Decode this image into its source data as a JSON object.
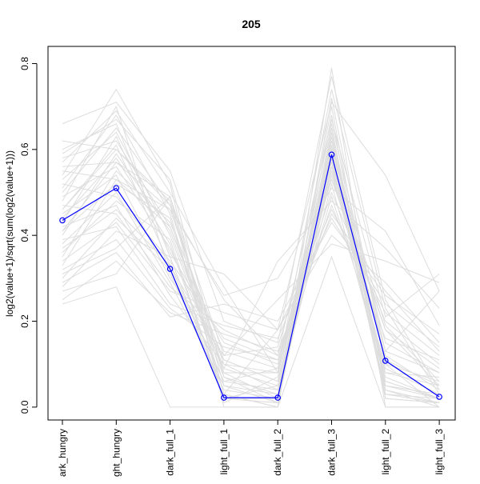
{
  "chart_data": {
    "type": "line",
    "title": "205",
    "xlabel": "",
    "ylabel": "log2(value+1)/sqrt(sum(log2(value+1)))",
    "categories": [
      "dark_hungry",
      "light_hungry",
      "dark_full_1",
      "light_full_1",
      "dark_full_2",
      "dark_full_3",
      "light_full_2",
      "light_full_3"
    ],
    "tick_labels_visible": [
      "ark_hungry",
      "ght_hungry",
      "dark_full_1",
      "light_full_1",
      "dark_full_2",
      "dark_full_3",
      "light_full_2",
      "light_full_3"
    ],
    "y_ticks": [
      0.0,
      0.2,
      0.4,
      0.6,
      0.8
    ],
    "y_tick_labels": [
      "0.0",
      "0.2",
      "0.4",
      "0.6",
      "0.8"
    ],
    "ylim": [
      -0.03,
      0.84
    ],
    "grid": false,
    "legend": "none",
    "highlight_series": {
      "color": "#0000ff",
      "values": [
        0.435,
        0.51,
        0.322,
        0.022,
        0.022,
        0.588,
        0.108,
        0.024
      ]
    },
    "background_color": "#dddddd",
    "background_series": [
      {
        "values": [
          0.62,
          0.6,
          0.47,
          0.08,
          0.02,
          0.65,
          0.05,
          0.02
        ]
      },
      {
        "values": [
          0.6,
          0.66,
          0.35,
          0.02,
          0.05,
          0.6,
          0.02,
          0.01
        ]
      },
      {
        "values": [
          0.58,
          0.62,
          0.42,
          0.11,
          0.06,
          0.62,
          0.11,
          0.05
        ]
      },
      {
        "values": [
          0.56,
          0.57,
          0.49,
          0.05,
          0.01,
          0.58,
          0.04,
          0.0
        ]
      },
      {
        "values": [
          0.55,
          0.53,
          0.46,
          0.1,
          0.08,
          0.55,
          0.18,
          0.09
        ]
      },
      {
        "values": [
          0.53,
          0.64,
          0.4,
          0.07,
          0.03,
          0.61,
          0.06,
          0.02
        ]
      },
      {
        "values": [
          0.52,
          0.49,
          0.34,
          0.16,
          0.11,
          0.53,
          0.18,
          0.05
        ]
      },
      {
        "values": [
          0.51,
          0.68,
          0.45,
          0.03,
          0.0,
          0.68,
          0.02,
          0.01
        ]
      },
      {
        "values": [
          0.49,
          0.56,
          0.37,
          0.09,
          0.05,
          0.56,
          0.09,
          0.03
        ]
      },
      {
        "values": [
          0.48,
          0.7,
          0.31,
          0.04,
          0.02,
          0.7,
          0.04,
          0.01
        ]
      },
      {
        "values": [
          0.47,
          0.45,
          0.28,
          0.18,
          0.12,
          0.5,
          0.2,
          0.1
        ]
      },
      {
        "values": [
          0.46,
          0.61,
          0.33,
          0.06,
          0.09,
          0.59,
          0.07,
          0.02
        ]
      },
      {
        "values": [
          0.45,
          0.54,
          0.3,
          0.12,
          0.14,
          0.57,
          0.13,
          0.08
        ]
      },
      {
        "values": [
          0.44,
          0.58,
          0.38,
          0.02,
          0.02,
          0.63,
          0.03,
          0.02
        ]
      },
      {
        "values": [
          0.43,
          0.63,
          0.36,
          0.15,
          0.1,
          0.6,
          0.19,
          0.06
        ]
      },
      {
        "values": [
          0.42,
          0.47,
          0.26,
          0.1,
          0.04,
          0.54,
          0.12,
          0.04
        ]
      },
      {
        "values": [
          0.41,
          0.52,
          0.44,
          0.03,
          0.0,
          0.64,
          0.05,
          0.03
        ]
      },
      {
        "values": [
          0.4,
          0.59,
          0.41,
          0.08,
          0.08,
          0.58,
          0.08,
          0.07
        ]
      },
      {
        "values": [
          0.39,
          0.42,
          0.24,
          0.19,
          0.16,
          0.46,
          0.22,
          0.12
        ]
      },
      {
        "values": [
          0.38,
          0.5,
          0.29,
          0.05,
          0.03,
          0.52,
          0.06,
          0.02
        ]
      },
      {
        "values": [
          0.37,
          0.46,
          0.33,
          0.11,
          0.06,
          0.49,
          0.1,
          0.06
        ]
      },
      {
        "values": [
          0.36,
          0.48,
          0.39,
          0.02,
          0.01,
          0.57,
          0.03,
          0.01
        ]
      },
      {
        "values": [
          0.35,
          0.55,
          0.43,
          0.13,
          0.09,
          0.61,
          0.15,
          0.08
        ]
      },
      {
        "values": [
          0.34,
          0.43,
          0.27,
          0.22,
          0.18,
          0.44,
          0.24,
          0.14
        ]
      },
      {
        "values": [
          0.32,
          0.39,
          0.23,
          0.14,
          0.11,
          0.47,
          0.16,
          0.11
        ]
      },
      {
        "values": [
          0.3,
          0.44,
          0.32,
          0.06,
          0.04,
          0.55,
          0.08,
          0.05
        ]
      },
      {
        "values": [
          0.29,
          0.36,
          0.21,
          0.24,
          0.2,
          0.43,
          0.26,
          0.17
        ]
      },
      {
        "values": [
          0.27,
          0.31,
          0.49,
          0.03,
          0.18,
          0.71,
          0.54,
          0.27
        ]
      },
      {
        "values": [
          0.25,
          0.34,
          0.22,
          0.17,
          0.13,
          0.45,
          0.27,
          0.13
        ]
      },
      {
        "values": [
          0.24,
          0.28,
          0.0,
          0.0,
          0.0,
          0.35,
          0.0,
          0.0
        ]
      },
      {
        "values": [
          0.54,
          0.74,
          0.52,
          0.0,
          0.0,
          0.79,
          0.0,
          0.0
        ]
      },
      {
        "values": [
          0.66,
          0.71,
          0.55,
          0.2,
          0.15,
          0.77,
          0.25,
          0.04
        ]
      },
      {
        "values": [
          0.57,
          0.69,
          0.5,
          0.28,
          0.08,
          0.74,
          0.23,
          0.03
        ]
      },
      {
        "values": [
          0.5,
          0.65,
          0.47,
          0.25,
          0.12,
          0.67,
          0.21,
          0.31
        ]
      },
      {
        "values": [
          0.46,
          0.6,
          0.48,
          0.01,
          0.07,
          0.66,
          0.13,
          0.27
        ]
      },
      {
        "values": [
          0.41,
          0.57,
          0.46,
          0.26,
          0.3,
          0.51,
          0.41,
          0.19
        ]
      },
      {
        "values": [
          0.33,
          0.53,
          0.42,
          0.09,
          0.34,
          0.48,
          0.37,
          0.23
        ]
      },
      {
        "values": [
          0.28,
          0.41,
          0.35,
          0.31,
          0.18,
          0.4,
          0.29,
          0.15
        ]
      },
      {
        "values": [
          0.31,
          0.37,
          0.49,
          0.12,
          0.25,
          0.38,
          0.34,
          0.29
        ]
      },
      {
        "values": [
          0.59,
          0.67,
          0.53,
          0.07,
          0.01,
          0.72,
          0.1,
          0.0
        ]
      }
    ]
  }
}
